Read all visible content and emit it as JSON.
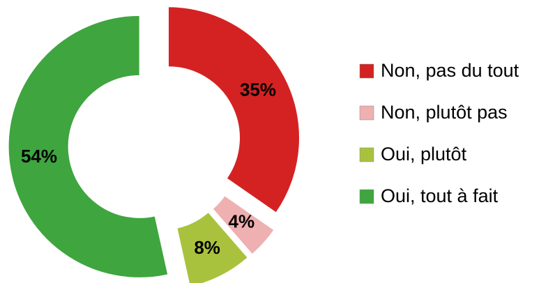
{
  "chart_data": {
    "type": "donut",
    "categories": [
      "Non, pas du tout",
      "Non, plutôt pas",
      "Oui, plutôt",
      "Oui, tout à fait"
    ],
    "values": [
      35,
      4,
      8,
      54
    ],
    "value_labels": [
      "35%",
      "4%",
      "8%",
      "54%"
    ],
    "colors": [
      "#d42222",
      "#eeb0b0",
      "#a9c23e",
      "#3fa53f"
    ],
    "legend": "right"
  }
}
